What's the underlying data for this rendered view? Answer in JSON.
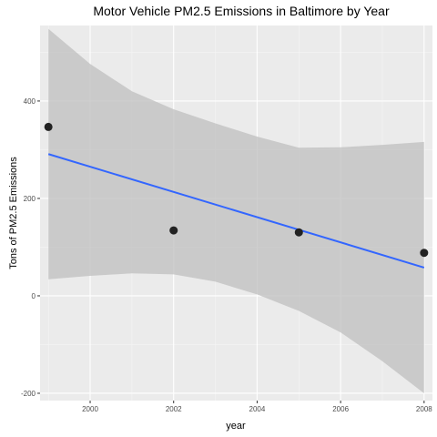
{
  "chart_data": {
    "type": "scatter",
    "title": "Motor Vehicle PM2.5 Emissions in Baltimore by Year",
    "xlabel": "year",
    "ylabel": "Tons of PM2.5 Emissions",
    "xlim": [
      1998.8,
      2008.2
    ],
    "ylim": [
      -215,
      555
    ],
    "x_ticks": [
      2000,
      2002,
      2004,
      2006,
      2008
    ],
    "y_ticks": [
      -200,
      0,
      200,
      400
    ],
    "grid": true,
    "legend": "none",
    "points": [
      {
        "x": 1999,
        "y": 346.8
      },
      {
        "x": 2002,
        "y": 134.3
      },
      {
        "x": 2005,
        "y": 130.4
      },
      {
        "x": 2008,
        "y": 88.3
      }
    ],
    "fit_line": {
      "method": "linear",
      "x": [
        1999,
        2008
      ],
      "y": [
        291,
        58
      ]
    },
    "confidence_band": {
      "x": [
        1999,
        2000,
        2001,
        2002,
        2003,
        2004,
        2005,
        2006,
        2007,
        2008
      ],
      "upper": [
        548,
        476,
        420,
        383,
        354,
        327,
        304,
        305,
        310,
        316
      ],
      "lower": [
        34,
        41,
        46,
        44,
        29,
        3,
        -31,
        -75,
        -134,
        -200
      ]
    },
    "colors": {
      "panel_bg": "#ebebeb",
      "grid_major": "#ffffff",
      "point": "#222222",
      "line": "#3366ff",
      "band": "#bdbdbd"
    }
  }
}
